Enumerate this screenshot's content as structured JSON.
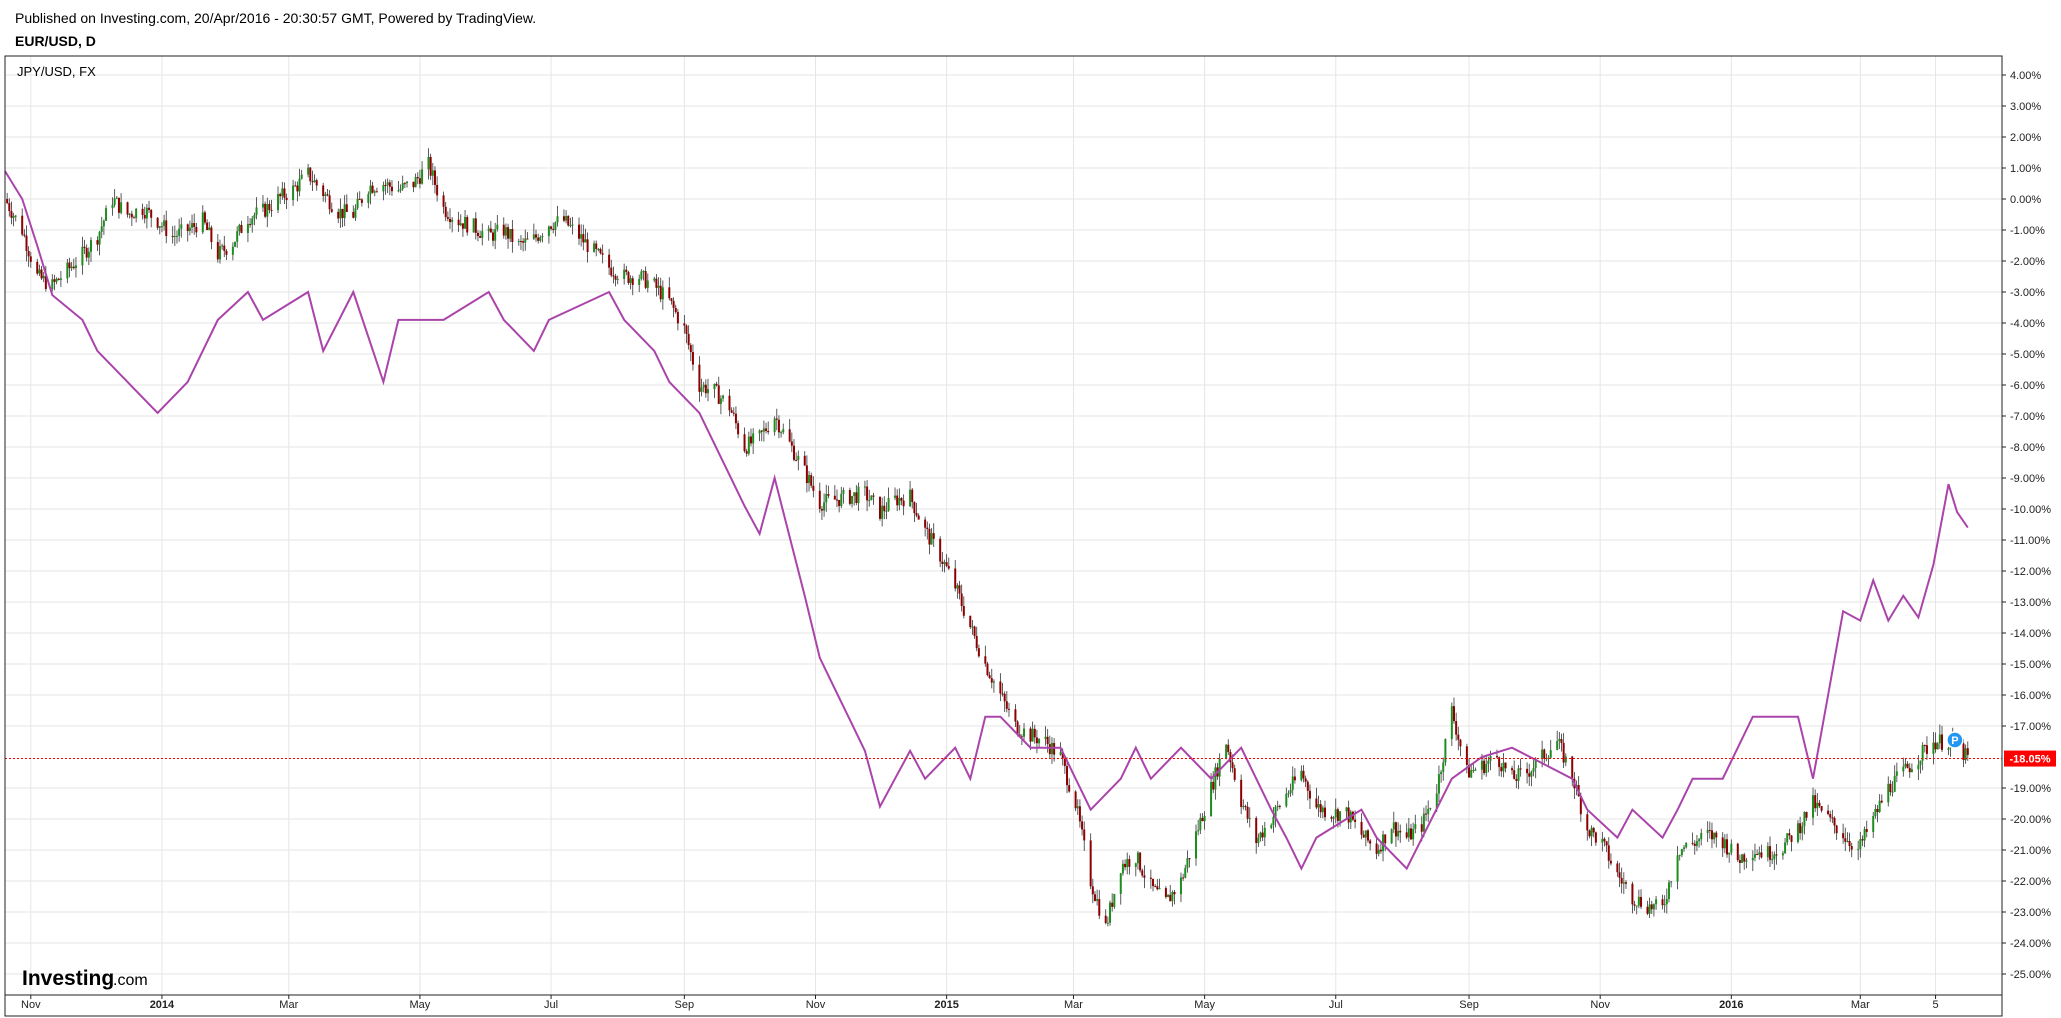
{
  "header": {
    "published": "Published on Investing.com, 20/Apr/2016 - 20:30:57 GMT, Powered by TradingView.",
    "symbol": "EUR/USD, D"
  },
  "overlay_label": "JPY/USD, FX",
  "logo": {
    "main": "Investing",
    "sub": ".com"
  },
  "marker": {
    "letter": "P",
    "color": "#2196f3"
  },
  "chart_data": {
    "type": "line",
    "title": "EUR/USD, D",
    "y_unit": "%",
    "ylim": [
      -25.5,
      4.5
    ],
    "y_ticks": [
      4,
      3,
      2,
      1,
      0,
      -1,
      -2,
      -3,
      -4,
      -5,
      -6,
      -7,
      -8,
      -9,
      -10,
      -11,
      -12,
      -13,
      -14,
      -15,
      -16,
      -17,
      -18,
      -19,
      -20,
      -21,
      -22,
      -23,
      -24,
      -25
    ],
    "y_tick_labels": [
      "4.00%",
      "3.00%",
      "2.00%",
      "1.00%",
      "0.00%",
      "-1.00%",
      "-2.00%",
      "-3.00%",
      "-4.00%",
      "-5.00%",
      "-6.00%",
      "-7.00%",
      "-8.00%",
      "-9.00%",
      "-10.00%",
      "-11.00%",
      "-12.00%",
      "-13.00%",
      "-14.00%",
      "-15.00%",
      "-16.00%",
      "-17.00%",
      "-19.00%",
      "-20.00%",
      "-21.00%",
      "-22.00%",
      "-23.00%",
      "-24.00%",
      "-25.00%"
    ],
    "y_tick_values": [
      4,
      3,
      2,
      1,
      0,
      -1,
      -2,
      -3,
      -4,
      -5,
      -6,
      -7,
      -8,
      -9,
      -10,
      -11,
      -12,
      -13,
      -14,
      -15,
      -16,
      -17,
      -19,
      -20,
      -21,
      -22,
      -23,
      -24,
      -25
    ],
    "x_labels": [
      {
        "label": "Nov",
        "date": "2013-11-01",
        "bold": false
      },
      {
        "label": "2014",
        "date": "2014-01-01",
        "bold": true
      },
      {
        "label": "Mar",
        "date": "2014-03-01",
        "bold": false
      },
      {
        "label": "May",
        "date": "2014-05-01",
        "bold": false
      },
      {
        "label": "Jul",
        "date": "2014-07-01",
        "bold": false
      },
      {
        "label": "Sep",
        "date": "2014-09-01",
        "bold": false
      },
      {
        "label": "Nov",
        "date": "2014-11-01",
        "bold": false
      },
      {
        "label": "2015",
        "date": "2015-01-01",
        "bold": true
      },
      {
        "label": "Mar",
        "date": "2015-03-01",
        "bold": false
      },
      {
        "label": "May",
        "date": "2015-05-01",
        "bold": false
      },
      {
        "label": "Jul",
        "date": "2015-07-01",
        "bold": false
      },
      {
        "label": "Sep",
        "date": "2015-09-01",
        "bold": false
      },
      {
        "label": "Nov",
        "date": "2015-11-01",
        "bold": false
      },
      {
        "label": "2016",
        "date": "2016-01-01",
        "bold": true
      },
      {
        "label": "Mar",
        "date": "2016-03-01",
        "bold": false
      },
      {
        "label": "5",
        "date": "2016-04-05",
        "bold": false
      }
    ],
    "x_range": [
      "2013-10-20",
      "2016-04-28"
    ],
    "current_value": -18.05,
    "current_label": "-18.05%",
    "grid": true,
    "series": [
      {
        "name": "EUR/USD, D",
        "style": "candles",
        "colors": {
          "up": "#1e8c1e",
          "down": "#8b0000",
          "wick": "#333333"
        },
        "points": [
          [
            "2013-10-20",
            0.0
          ],
          [
            "2013-10-28",
            -1.0
          ],
          [
            "2013-11-04",
            -2.5
          ],
          [
            "2013-11-11",
            -2.8
          ],
          [
            "2013-11-18",
            -2.3
          ],
          [
            "2013-11-25",
            -1.8
          ],
          [
            "2013-12-02",
            -1.2
          ],
          [
            "2013-12-09",
            0.0
          ],
          [
            "2013-12-16",
            -0.5
          ],
          [
            "2013-12-23",
            -0.3
          ],
          [
            "2013-12-30",
            -0.7
          ],
          [
            "2014-01-06",
            -1.2
          ],
          [
            "2014-01-13",
            -1.0
          ],
          [
            "2014-01-20",
            -0.7
          ],
          [
            "2014-01-27",
            -1.8
          ],
          [
            "2014-02-03",
            -1.4
          ],
          [
            "2014-02-10",
            -0.6
          ],
          [
            "2014-02-17",
            -0.4
          ],
          [
            "2014-02-24",
            0.0
          ],
          [
            "2014-03-03",
            0.3
          ],
          [
            "2014-03-10",
            0.8
          ],
          [
            "2014-03-17",
            0.2
          ],
          [
            "2014-03-24",
            -0.4
          ],
          [
            "2014-03-31",
            -0.5
          ],
          [
            "2014-04-07",
            0.4
          ],
          [
            "2014-04-14",
            0.5
          ],
          [
            "2014-04-21",
            0.3
          ],
          [
            "2014-04-28",
            0.5
          ],
          [
            "2014-05-05",
            1.1
          ],
          [
            "2014-05-12",
            -0.3
          ],
          [
            "2014-05-19",
            -0.7
          ],
          [
            "2014-05-26",
            -0.9
          ],
          [
            "2014-06-02",
            -1.2
          ],
          [
            "2014-06-09",
            -1.0
          ],
          [
            "2014-06-16",
            -1.5
          ],
          [
            "2014-06-23",
            -1.3
          ],
          [
            "2014-06-30",
            -0.8
          ],
          [
            "2014-07-07",
            -0.7
          ],
          [
            "2014-07-14",
            -1.2
          ],
          [
            "2014-07-21",
            -1.7
          ],
          [
            "2014-07-28",
            -2.2
          ],
          [
            "2014-08-04",
            -2.5
          ],
          [
            "2014-08-11",
            -2.5
          ],
          [
            "2014-08-18",
            -2.8
          ],
          [
            "2014-08-25",
            -3.3
          ],
          [
            "2014-09-01",
            -4.2
          ],
          [
            "2014-09-08",
            -6.0
          ],
          [
            "2014-09-15",
            -6.2
          ],
          [
            "2014-09-22",
            -6.7
          ],
          [
            "2014-09-29",
            -8.0
          ],
          [
            "2014-10-06",
            -7.7
          ],
          [
            "2014-10-13",
            -7.0
          ],
          [
            "2014-10-20",
            -7.9
          ],
          [
            "2014-10-27",
            -8.8
          ],
          [
            "2014-11-03",
            -9.8
          ],
          [
            "2014-11-10",
            -9.7
          ],
          [
            "2014-11-17",
            -9.6
          ],
          [
            "2014-11-24",
            -9.5
          ],
          [
            "2014-12-01",
            -10.1
          ],
          [
            "2014-12-08",
            -9.7
          ],
          [
            "2014-12-15",
            -9.6
          ],
          [
            "2014-12-22",
            -10.7
          ],
          [
            "2014-12-29",
            -11.5
          ],
          [
            "2015-01-05",
            -12.5
          ],
          [
            "2015-01-12",
            -13.8
          ],
          [
            "2015-01-19",
            -15.0
          ],
          [
            "2015-01-26",
            -16.0
          ],
          [
            "2015-02-02",
            -17.0
          ],
          [
            "2015-02-09",
            -17.3
          ],
          [
            "2015-02-16",
            -17.5
          ],
          [
            "2015-02-23",
            -18.0
          ],
          [
            "2015-03-02",
            -19.5
          ],
          [
            "2015-03-09",
            -22.0
          ],
          [
            "2015-03-16",
            -23.5
          ],
          [
            "2015-03-23",
            -21.5
          ],
          [
            "2015-03-30",
            -21.2
          ],
          [
            "2015-04-06",
            -22.2
          ],
          [
            "2015-04-13",
            -22.7
          ],
          [
            "2015-04-20",
            -22.0
          ],
          [
            "2015-04-27",
            -20.5
          ],
          [
            "2015-05-04",
            -19.0
          ],
          [
            "2015-05-11",
            -17.5
          ],
          [
            "2015-05-18",
            -19.4
          ],
          [
            "2015-05-25",
            -20.7
          ],
          [
            "2015-06-01",
            -20.0
          ],
          [
            "2015-06-08",
            -19.2
          ],
          [
            "2015-06-15",
            -18.5
          ],
          [
            "2015-06-22",
            -19.6
          ],
          [
            "2015-06-29",
            -19.8
          ],
          [
            "2015-07-06",
            -19.8
          ],
          [
            "2015-07-13",
            -20.5
          ],
          [
            "2015-07-20",
            -21.0
          ],
          [
            "2015-07-27",
            -20.2
          ],
          [
            "2015-08-03",
            -20.6
          ],
          [
            "2015-08-10",
            -20.2
          ],
          [
            "2015-08-17",
            -19.0
          ],
          [
            "2015-08-24",
            -16.5
          ],
          [
            "2015-08-31",
            -18.5
          ],
          [
            "2015-09-07",
            -18.3
          ],
          [
            "2015-09-14",
            -18.0
          ],
          [
            "2015-09-21",
            -18.7
          ],
          [
            "2015-09-28",
            -18.5
          ],
          [
            "2015-10-05",
            -18.0
          ],
          [
            "2015-10-12",
            -17.5
          ],
          [
            "2015-10-19",
            -18.6
          ],
          [
            "2015-10-26",
            -20.3
          ],
          [
            "2015-11-02",
            -20.8
          ],
          [
            "2015-11-09",
            -21.8
          ],
          [
            "2015-11-16",
            -22.5
          ],
          [
            "2015-11-23",
            -22.8
          ],
          [
            "2015-11-30",
            -22.9
          ],
          [
            "2015-12-07",
            -21.0
          ],
          [
            "2015-12-14",
            -20.8
          ],
          [
            "2015-12-21",
            -20.5
          ],
          [
            "2015-12-28",
            -20.7
          ],
          [
            "2016-01-04",
            -21.3
          ],
          [
            "2016-01-11",
            -21.0
          ],
          [
            "2016-01-18",
            -21.1
          ],
          [
            "2016-01-25",
            -20.9
          ],
          [
            "2016-02-01",
            -20.3
          ],
          [
            "2016-02-08",
            -19.5
          ],
          [
            "2016-02-15",
            -20.0
          ],
          [
            "2016-02-22",
            -20.5
          ],
          [
            "2016-02-29",
            -21.0
          ],
          [
            "2016-03-07",
            -20.0
          ],
          [
            "2016-03-14",
            -19.0
          ],
          [
            "2016-03-21",
            -18.5
          ],
          [
            "2016-03-28",
            -18.0
          ],
          [
            "2016-04-04",
            -17.5
          ],
          [
            "2016-04-11",
            -17.5
          ],
          [
            "2016-04-18",
            -17.9
          ],
          [
            "2016-04-20",
            -18.05
          ]
        ]
      },
      {
        "name": "JPY/USD, FX",
        "style": "step",
        "color": "#aa44aa",
        "points": [
          [
            "2013-10-20",
            0.9
          ],
          [
            "2013-10-28",
            0.0
          ],
          [
            "2013-11-04",
            -1.5
          ],
          [
            "2013-11-11",
            -3.1
          ],
          [
            "2013-11-25",
            -3.9
          ],
          [
            "2013-12-02",
            -4.9
          ],
          [
            "2013-12-16",
            -5.9
          ],
          [
            "2013-12-30",
            -6.9
          ],
          [
            "2014-01-13",
            -5.9
          ],
          [
            "2014-01-27",
            -3.9
          ],
          [
            "2014-02-10",
            -3.0
          ],
          [
            "2014-02-17",
            -3.9
          ],
          [
            "2014-03-10",
            -3.0
          ],
          [
            "2014-03-17",
            -4.9
          ],
          [
            "2014-03-31",
            -3.0
          ],
          [
            "2014-04-14",
            -5.9
          ],
          [
            "2014-04-21",
            -3.9
          ],
          [
            "2014-05-12",
            -3.9
          ],
          [
            "2014-06-02",
            -3.0
          ],
          [
            "2014-06-09",
            -3.9
          ],
          [
            "2014-06-23",
            -4.9
          ],
          [
            "2014-06-30",
            -3.9
          ],
          [
            "2014-07-28",
            -3.0
          ],
          [
            "2014-08-04",
            -3.9
          ],
          [
            "2014-08-18",
            -4.9
          ],
          [
            "2014-08-25",
            -5.9
          ],
          [
            "2014-09-08",
            -6.9
          ],
          [
            "2014-09-15",
            -7.9
          ],
          [
            "2014-09-22",
            -8.9
          ],
          [
            "2014-09-29",
            -9.9
          ],
          [
            "2014-10-06",
            -10.8
          ],
          [
            "2014-10-13",
            -9.0
          ],
          [
            "2014-10-27",
            -12.8
          ],
          [
            "2014-11-03",
            -14.8
          ],
          [
            "2014-11-10",
            -15.8
          ],
          [
            "2014-11-17",
            -16.8
          ],
          [
            "2014-11-24",
            -17.8
          ],
          [
            "2014-12-01",
            -19.6
          ],
          [
            "2014-12-08",
            -18.7
          ],
          [
            "2014-12-15",
            -17.8
          ],
          [
            "2014-12-22",
            -18.7
          ],
          [
            "2015-01-05",
            -17.7
          ],
          [
            "2015-01-12",
            -18.7
          ],
          [
            "2015-01-19",
            -16.7
          ],
          [
            "2015-01-26",
            -16.7
          ],
          [
            "2015-02-09",
            -17.7
          ],
          [
            "2015-02-23",
            -17.7
          ],
          [
            "2015-03-02",
            -18.7
          ],
          [
            "2015-03-09",
            -19.7
          ],
          [
            "2015-03-23",
            -18.7
          ],
          [
            "2015-03-30",
            -17.7
          ],
          [
            "2015-04-06",
            -18.7
          ],
          [
            "2015-04-20",
            -17.7
          ],
          [
            "2015-05-04",
            -18.7
          ],
          [
            "2015-05-18",
            -17.7
          ],
          [
            "2015-06-01",
            -19.7
          ],
          [
            "2015-06-08",
            -20.6
          ],
          [
            "2015-06-15",
            -21.6
          ],
          [
            "2015-06-22",
            -20.6
          ],
          [
            "2015-07-13",
            -19.7
          ],
          [
            "2015-07-20",
            -20.6
          ],
          [
            "2015-08-03",
            -21.6
          ],
          [
            "2015-08-24",
            -18.7
          ],
          [
            "2015-09-07",
            -18.0
          ],
          [
            "2015-09-21",
            -17.7
          ],
          [
            "2015-10-19",
            -18.7
          ],
          [
            "2015-10-26",
            -19.7
          ],
          [
            "2015-11-09",
            -20.6
          ],
          [
            "2015-11-16",
            -19.7
          ],
          [
            "2015-11-30",
            -20.6
          ],
          [
            "2015-12-07",
            -19.7
          ],
          [
            "2015-12-14",
            -18.7
          ],
          [
            "2015-12-28",
            -18.7
          ],
          [
            "2016-01-04",
            -17.7
          ],
          [
            "2016-01-11",
            -16.7
          ],
          [
            "2016-02-01",
            -16.7
          ],
          [
            "2016-02-08",
            -18.7
          ],
          [
            "2016-02-15",
            -16.0
          ],
          [
            "2016-02-22",
            -13.3
          ],
          [
            "2016-03-01",
            -13.6
          ],
          [
            "2016-03-07",
            -12.3
          ],
          [
            "2016-03-14",
            -13.6
          ],
          [
            "2016-03-21",
            -12.8
          ],
          [
            "2016-03-28",
            -13.5
          ],
          [
            "2016-04-04",
            -11.8
          ],
          [
            "2016-04-11",
            -9.2
          ],
          [
            "2016-04-15",
            -10.1
          ],
          [
            "2016-04-20",
            -10.6
          ]
        ]
      }
    ]
  }
}
